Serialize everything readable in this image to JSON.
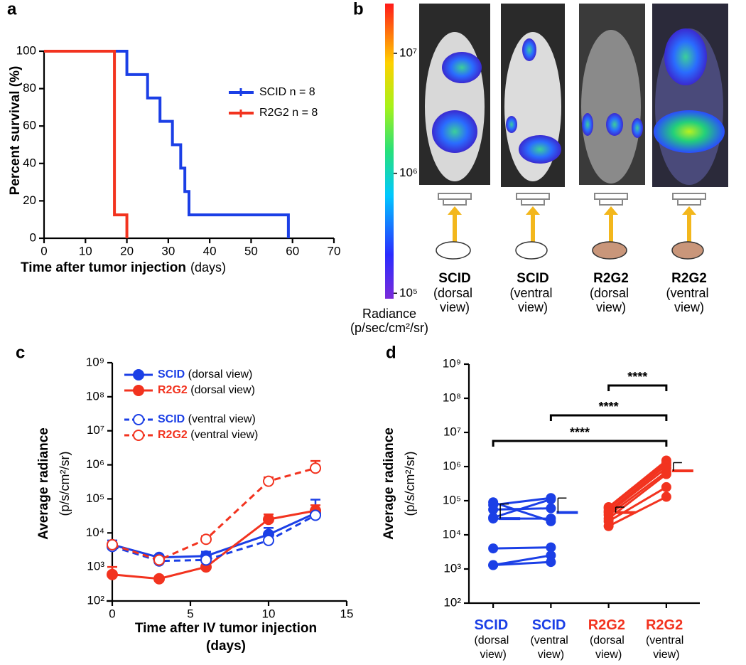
{
  "chart_data": [
    {
      "type": "step",
      "panel": "a",
      "ylabel": "Percent survival (%)",
      "xlabel": "Time after tumor injection",
      "xlabel_units": "(days)",
      "xlim": [
        0,
        70
      ],
      "xticks": [
        0,
        10,
        20,
        30,
        40,
        50,
        60,
        70
      ],
      "ylim": [
        0,
        100
      ],
      "yticks": [
        0,
        20,
        40,
        60,
        80,
        100
      ],
      "series": [
        {
          "name": "SCID n = 8",
          "color": "#1b3fe6",
          "x": [
            0,
            20,
            25,
            28,
            31,
            33,
            34,
            35,
            59
          ],
          "values": [
            100,
            87.5,
            75,
            62.5,
            50,
            37.5,
            25,
            12.5,
            0
          ]
        },
        {
          "name": "R2G2 n = 8",
          "color": "#f2331f",
          "x": [
            0,
            17,
            20
          ],
          "values": [
            100,
            12.5,
            0
          ]
        }
      ]
    },
    {
      "type": "colorbar",
      "panel": "b",
      "label": "Radiance",
      "label_units": "(p/sec/cm²/sr)",
      "log": true,
      "ylim": [
        90000,
        26000000
      ],
      "yticks": [
        {
          "value": 100000,
          "label": "10⁵"
        },
        {
          "value": 1000000,
          "label": "10⁶"
        },
        {
          "value": 10000000,
          "label": "10⁷"
        }
      ],
      "images": [
        {
          "strain": "SCID",
          "view": "(dorsal view)",
          "color": "#1b3fe6"
        },
        {
          "strain": "SCID",
          "view": "(ventral view)",
          "color": "#1b3fe6"
        },
        {
          "strain": "R2G2",
          "view": "(dorsal view)",
          "color": "#f2331f"
        },
        {
          "strain": "R2G2",
          "view": "(ventral view)",
          "color": "#f2331f"
        }
      ]
    },
    {
      "type": "line",
      "panel": "c",
      "ylabel": "Average radiance",
      "ylabel_units": "(p/s/cm²/sr)",
      "xlabel": "Time after IV tumor injection",
      "xlabel_units": "(days)",
      "log": true,
      "xlim": [
        0,
        15
      ],
      "xticks": [
        0,
        5,
        10,
        15
      ],
      "ylim": [
        100,
        1000000000
      ],
      "yticks": [
        {
          "value": 100,
          "label": "10²"
        },
        {
          "value": 1000,
          "label": "10³"
        },
        {
          "value": 10000,
          "label": "10⁴"
        },
        {
          "value": 100000,
          "label": "10⁵"
        },
        {
          "value": 1000000,
          "label": "10⁶"
        },
        {
          "value": 10000000,
          "label": "10⁷"
        },
        {
          "value": 100000000,
          "label": "10⁸"
        },
        {
          "value": 1000000000,
          "label": "10⁹"
        }
      ],
      "x": [
        0,
        3,
        6,
        10,
        13
      ],
      "series": [
        {
          "name": "SCID (dorsal view)",
          "color": "#1b3fe6",
          "dashed": false,
          "filled": true,
          "values": [
            4500,
            1900,
            2100,
            9000,
            38000
          ],
          "errors": [
            1500,
            null,
            700,
            5000,
            57000
          ]
        },
        {
          "name": "R2G2 (dorsal view)",
          "color": "#f2331f",
          "dashed": false,
          "filled": true,
          "values": [
            600,
            450,
            1000,
            25000,
            45000
          ],
          "errors": [
            400,
            null,
            null,
            10000,
            20000
          ]
        },
        {
          "name": "SCID (ventral view)",
          "color": "#1b3fe6",
          "dashed": true,
          "filled": false,
          "values": [
            4000,
            1500,
            1600,
            6000,
            33000
          ],
          "errors": [
            1000,
            null,
            null,
            null,
            null
          ]
        },
        {
          "name": "R2G2 (ventral view)",
          "color": "#f2331f",
          "dashed": true,
          "filled": false,
          "values": [
            4500,
            1600,
            6500,
            330000,
            800000
          ],
          "errors": [
            null,
            null,
            1500,
            100000,
            500000
          ]
        }
      ]
    },
    {
      "type": "dotplot",
      "panel": "d",
      "ylabel": "Average radiance",
      "ylabel_units": "(p/s/cm²/sr)",
      "log": true,
      "ylim": [
        100,
        1000000000
      ],
      "yticks": [
        {
          "value": 100,
          "label": "10²"
        },
        {
          "value": 1000,
          "label": "10³"
        },
        {
          "value": 10000,
          "label": "10⁴"
        },
        {
          "value": 100000,
          "label": "10⁵"
        },
        {
          "value": 1000000,
          "label": "10⁶"
        },
        {
          "value": 10000000,
          "label": "10⁷"
        },
        {
          "value": 100000000,
          "label": "10⁸"
        },
        {
          "value": 1000000000,
          "label": "10⁹"
        }
      ],
      "categories": [
        "SCID (dorsal view)",
        "SCID (ventral view)",
        "R2G2 (dorsal view)",
        "R2G2 (ventral view)"
      ],
      "groups": [
        {
          "color": "#1b3fe6",
          "values": [
            90000,
            75000,
            55000,
            32000,
            30000,
            4000,
            1300,
            1300
          ],
          "mean": 30000,
          "error": 50000
        },
        {
          "color": "#1b3fe6",
          "values": [
            25000,
            120000,
            60000,
            110000,
            30000,
            4300,
            2500,
            1600
          ],
          "mean": 45000,
          "error": 75000
        },
        {
          "color": "#f2331f",
          "values": [
            65000,
            60000,
            50000,
            45000,
            38000,
            30000,
            25000,
            18000
          ],
          "mean": 45000,
          "error": 20000
        },
        {
          "color": "#f2331f",
          "values": [
            1500000,
            1300000,
            1100000,
            900000,
            700000,
            600000,
            250000,
            130000
          ],
          "mean": 750000,
          "error": 550000
        }
      ],
      "pairs": [
        [
          0,
          1
        ],
        [
          2,
          3
        ]
      ],
      "significance": [
        {
          "from": 0,
          "to": 3,
          "label": "****",
          "color": "#000000"
        },
        {
          "from": 1,
          "to": 3,
          "label": "****",
          "color": "#000000"
        },
        {
          "from": 2,
          "to": 3,
          "label": "****",
          "color": "#f2331f"
        }
      ]
    }
  ]
}
